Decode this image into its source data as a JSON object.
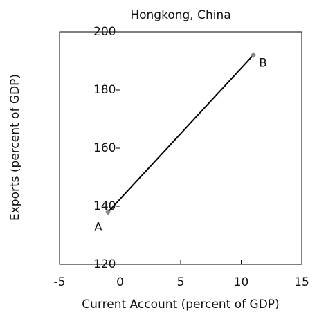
{
  "chart_data": {
    "type": "line",
    "title": "Hongkong, China",
    "x_label": "Current Account (percent of GDP)",
    "y_label": "Exports (percent of GDP)",
    "series": [
      {
        "x": [
          -1,
          11
        ],
        "values": [
          138,
          192
        ],
        "color": "#000000",
        "marker_color": "#888888",
        "point_labels": [
          "A",
          "B"
        ]
      }
    ],
    "xlim": [
      -5,
      15
    ],
    "xticks": [
      -5,
      0,
      5,
      10,
      15
    ],
    "ylim": [
      120,
      200
    ],
    "yticks": [
      120,
      140,
      160,
      180,
      200
    ]
  }
}
